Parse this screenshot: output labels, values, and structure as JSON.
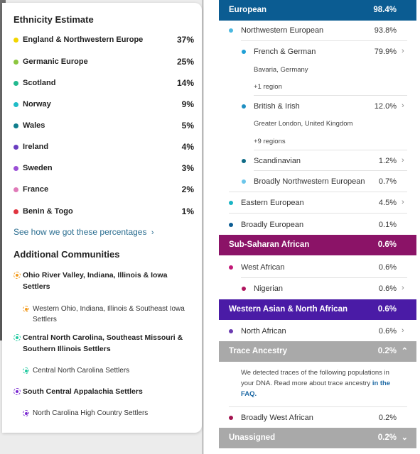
{
  "ethnicity": {
    "title": "Ethnicity Estimate",
    "items": [
      {
        "name": "England & Northwestern Europe",
        "pct": "37%",
        "color": "#f2d500"
      },
      {
        "name": "Germanic Europe",
        "pct": "25%",
        "color": "#8cc63f"
      },
      {
        "name": "Scotland",
        "pct": "14%",
        "color": "#22b98f"
      },
      {
        "name": "Norway",
        "pct": "9%",
        "color": "#1fbcc7"
      },
      {
        "name": "Wales",
        "pct": "5%",
        "color": "#0f7d8c"
      },
      {
        "name": "Ireland",
        "pct": "4%",
        "color": "#6a3ec0"
      },
      {
        "name": "Sweden",
        "pct": "3%",
        "color": "#9b4fd6"
      },
      {
        "name": "France",
        "pct": "2%",
        "color": "#e07ab8"
      },
      {
        "name": "Benin & Togo",
        "pct": "1%",
        "color": "#e0343f"
      }
    ],
    "see_how_label": "See how we got these percentages"
  },
  "communities": {
    "title": "Additional Communities",
    "items": [
      {
        "name": "Ohio River Valley, Indiana, Illinois & Iowa Settlers",
        "color": "#f29a1d",
        "sub": "Western Ohio, Indiana, Illinois & Southeast Iowa Settlers"
      },
      {
        "name": "Central North Carolina, Southeast Missouri & Southern Illinois Settlers",
        "color": "#1fc9a0",
        "sub": "Central North Carolina Settlers"
      },
      {
        "name": "South Central Appalachia Settlers",
        "color": "#7a2ad0",
        "sub": "North Carolina High Country Settlers"
      }
    ]
  },
  "regions": {
    "european": {
      "band": {
        "name": "European",
        "pct": "98.4%",
        "color": "#0b5c92"
      },
      "nw": {
        "name": "Northwestern European",
        "pct": "93.8%",
        "color": "#4bb8e0"
      },
      "french_german": {
        "name": "French & German",
        "pct": "79.9%",
        "color": "#1fa0d6",
        "location": "Bavaria, Germany",
        "more": "+1 region"
      },
      "british_irish": {
        "name": "British & Irish",
        "pct": "12.0%",
        "color": "#1f8fc2",
        "location": "Greater London, United Kingdom",
        "more": "+9 regions"
      },
      "scandinavian": {
        "name": "Scandinavian",
        "pct": "1.2%",
        "color": "#0e6b86"
      },
      "broadly_nw": {
        "name": "Broadly Northwestern European",
        "pct": "0.7%",
        "color": "#6cc6ea"
      },
      "eastern": {
        "name": "Eastern European",
        "pct": "4.5%",
        "color": "#19b4c4"
      },
      "broadly_eu": {
        "name": "Broadly European",
        "pct": "0.1%",
        "color": "#0b5c92"
      }
    },
    "subsaharan": {
      "band": {
        "name": "Sub-Saharan African",
        "pct": "0.6%",
        "color": "#8b1367"
      },
      "west_african": {
        "name": "West African",
        "pct": "0.6%",
        "color": "#c21877"
      },
      "nigerian": {
        "name": "Nigerian",
        "pct": "0.6%",
        "color": "#b0155f"
      }
    },
    "western_asian": {
      "band": {
        "name": "Western Asian & North African",
        "pct": "0.6%",
        "color": "#4a1ba6"
      },
      "north_african": {
        "name": "North African",
        "pct": "0.6%",
        "color": "#6a3ab0"
      }
    },
    "trace": {
      "band": {
        "name": "Trace Ancestry",
        "pct": "0.2%",
        "color": "#a9a9a9"
      },
      "note": "We detected traces of the following populations in your DNA. Read more about trace ancestry ",
      "note_link": "in the FAQ.",
      "broadly_west_african": {
        "name": "Broadly West African",
        "pct": "0.2%",
        "color": "#a3144f"
      }
    },
    "unassigned": {
      "band": {
        "name": "Unassigned",
        "pct": "0.2%",
        "color": "#a9a9a9"
      }
    }
  }
}
